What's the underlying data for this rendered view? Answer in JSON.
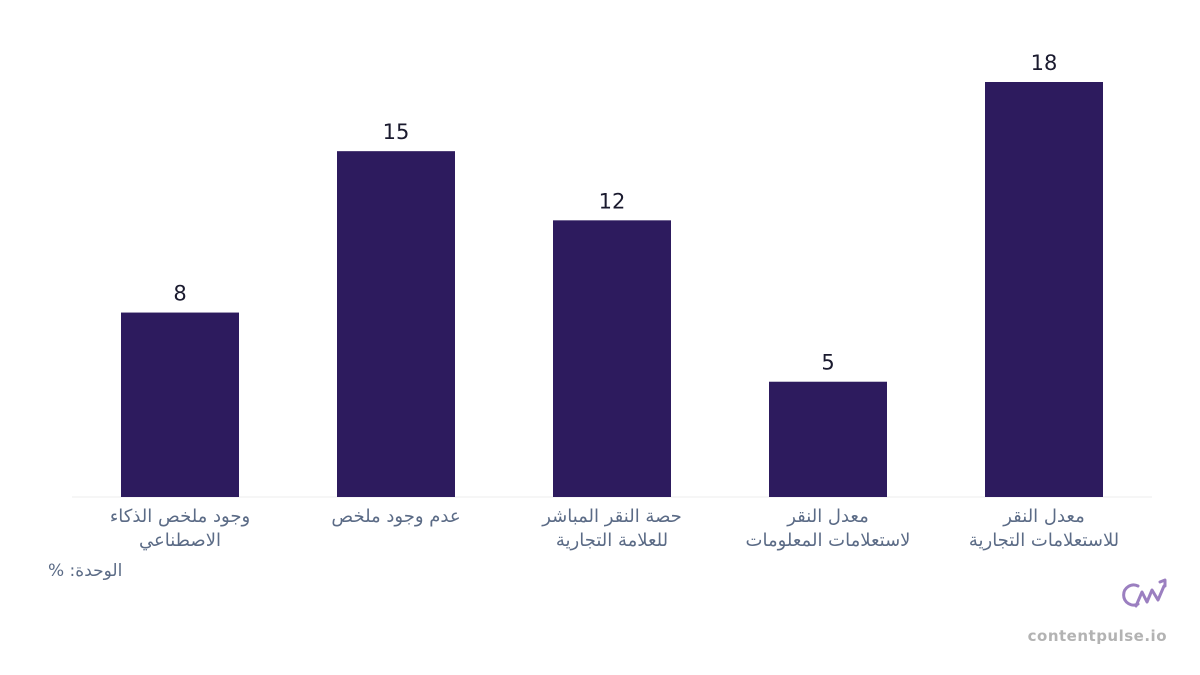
{
  "chart_data": {
    "type": "bar",
    "categories": [
      "وجود ملخص الذكاء\nالاصطناعي",
      "عدم وجود ملخص",
      "حصة النقر المباشر\nللعلامة التجارية",
      "معدل النقر\nلاستعلامات المعلومات",
      "معدل النقر\nللاستعلامات التجارية"
    ],
    "values": [
      8,
      15,
      12,
      5,
      18
    ],
    "color": "#2d1b5e",
    "ylim": [
      0,
      18
    ],
    "unit_note": "الوحدة: %",
    "watermark": "contentpulse.io"
  }
}
